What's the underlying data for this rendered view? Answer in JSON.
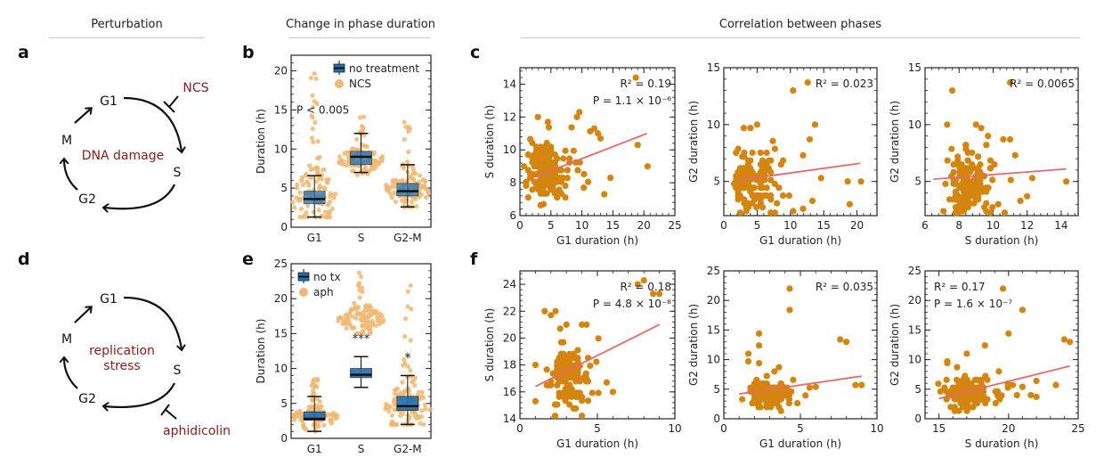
{
  "sections": {
    "perturbation": "Perturbation",
    "change": "Change in phase duration",
    "correlation": "Correlation between phases"
  },
  "panel_labels": {
    "a": "a",
    "b": "b",
    "c": "c",
    "d": "d",
    "e": "e",
    "f": "f"
  },
  "diagrams": [
    {
      "phases": [
        "G1",
        "S",
        "G2",
        "M"
      ],
      "center_label": [
        "DNA damage"
      ],
      "inhibitor": "NCS",
      "inhibitor_position": "G1-to-S"
    },
    {
      "phases": [
        "G1",
        "S",
        "G2",
        "M"
      ],
      "center_label": [
        "replication",
        "stress"
      ],
      "inhibitor": "aphidicolin",
      "inhibitor_position": "S-to-G2"
    }
  ],
  "colors": {
    "accent_text": "#8b1a1a",
    "box_blue": "#1f6fb4",
    "dot_light": "#f0b874",
    "dot_dark": "#d4850f",
    "fit_line": "#e8686a"
  },
  "chart_data": [
    {
      "id": "b",
      "type": "box+swarm",
      "title": "",
      "ylabel": "Duration (h)",
      "categories": [
        "G1",
        "S",
        "G2-M"
      ],
      "ylim": [
        0,
        22
      ],
      "yticks": [
        0,
        5,
        10,
        15,
        20
      ],
      "legend": [
        "no treatment",
        "NCS"
      ],
      "legend_position": "top-right",
      "annotation": "P < 0.005",
      "boxes_control": [
        {
          "whislo": 1.3,
          "q1": 3.0,
          "med": 3.6,
          "q3": 4.6,
          "whishi": 6.6
        },
        {
          "whislo": 7.0,
          "q1": 8.0,
          "med": 9.0,
          "q3": 9.7,
          "whishi": 12.0
        },
        {
          "whislo": 2.6,
          "q1": 4.0,
          "med": 4.6,
          "q3": 5.6,
          "whishi": 8.0
        }
      ],
      "treated_summary": [
        {
          "median": 3.7,
          "min": 1.3,
          "max": 20.7
        },
        {
          "median": 8.6,
          "min": 6.6,
          "max": 14.3
        },
        {
          "median": 4.8,
          "min": 2.6,
          "max": 13.6
        }
      ]
    },
    {
      "id": "e",
      "type": "box+swarm",
      "ylabel": "Duration (h)",
      "categories": [
        "G1",
        "S",
        "G2-M"
      ],
      "ylim": [
        0,
        25
      ],
      "yticks": [
        0,
        5,
        10,
        15,
        20,
        25
      ],
      "legend": [
        "no tx",
        "aph"
      ],
      "legend_position": "top-left",
      "significance": [
        "",
        "***",
        "*"
      ],
      "boxes_control": [
        {
          "whislo": 1.0,
          "q1": 2.6,
          "med": 2.8,
          "q3": 3.8,
          "whishi": 6.0
        },
        {
          "whislo": 7.3,
          "q1": 8.7,
          "med": 9.1,
          "q3": 10.0,
          "whishi": 11.7
        },
        {
          "whislo": 2.0,
          "q1": 4.0,
          "med": 4.6,
          "q3": 6.0,
          "whishi": 9.0
        }
      ],
      "treated_summary": [
        {
          "median": 3.0,
          "min": 1.0,
          "max": 9.0
        },
        {
          "median": 17.0,
          "min": 15.0,
          "max": 24.3
        },
        {
          "median": 4.3,
          "min": 2.0,
          "max": 22.0
        }
      ]
    },
    {
      "id": "c1",
      "type": "scatter",
      "xlabel": "G1 duration (h)",
      "ylabel": "S duration (h)",
      "xlim": [
        0,
        25
      ],
      "ylim": [
        6,
        15
      ],
      "xticks": [
        0,
        5,
        10,
        15,
        20,
        25
      ],
      "yticks": [
        6,
        8,
        10,
        12,
        14
      ],
      "annotations": [
        "R² = 0.19",
        "P = 1.1 × 10⁻⁶"
      ],
      "fit": {
        "x": [
          2,
          20.5
        ],
        "y": [
          8.3,
          11.0
        ]
      },
      "n_points": 150,
      "seed": 11,
      "x_center": 4.2,
      "x_spread": 2.5,
      "y_center": 8.6,
      "y_spread": 0.9,
      "outliers": [
        [
          18.7,
          14.4
        ],
        [
          19,
          10.3
        ],
        [
          20.6,
          9
        ],
        [
          9.6,
          12.3
        ],
        [
          9.2,
          12
        ],
        [
          2.9,
          12
        ],
        [
          4.5,
          11.7
        ],
        [
          12,
          11.3
        ],
        [
          12.6,
          11
        ],
        [
          13,
          10.7
        ],
        [
          14.6,
          8.3
        ],
        [
          13.6,
          7.3
        ],
        [
          10.3,
          7.7
        ],
        [
          3.8,
          6.7
        ]
      ]
    },
    {
      "id": "c2",
      "type": "scatter",
      "xlabel": "G1 duration (h)",
      "ylabel": "G2 duration (h)",
      "xlim": [
        0,
        23
      ],
      "ylim": [
        2,
        15
      ],
      "xticks": [
        0,
        5,
        10,
        15,
        20
      ],
      "yticks": [
        5,
        10,
        15
      ],
      "annotations": [
        "R² = 0.023"
      ],
      "fit": {
        "x": [
          2,
          20.5
        ],
        "y": [
          5.1,
          6.6
        ]
      },
      "n_points": 150,
      "seed": 23,
      "x_center": 4.0,
      "x_spread": 2.2,
      "y_center": 5.0,
      "y_spread": 1.4,
      "outliers": [
        [
          12.6,
          13.7
        ],
        [
          10.4,
          13
        ],
        [
          13.7,
          10
        ],
        [
          12.9,
          8.7
        ],
        [
          11.9,
          7.3
        ],
        [
          18.6,
          5
        ],
        [
          20.6,
          5
        ],
        [
          18.9,
          3
        ],
        [
          13.3,
          3.3
        ],
        [
          11.9,
          2.6
        ],
        [
          14.6,
          5.3
        ],
        [
          3,
          9.7
        ],
        [
          5,
          10
        ],
        [
          4,
          9.7
        ]
      ]
    },
    {
      "id": "c3",
      "type": "scatter",
      "xlabel": "S duration (h)",
      "ylabel": "G2 duration (h)",
      "xlim": [
        6,
        15
      ],
      "ylim": [
        2,
        15
      ],
      "xticks": [
        6,
        8,
        10,
        12,
        14
      ],
      "yticks": [
        5,
        10,
        15
      ],
      "annotations": [
        "R² = 0.0065"
      ],
      "fit": {
        "x": [
          6.5,
          14.3
        ],
        "y": [
          5.2,
          6.1
        ]
      },
      "n_points": 150,
      "seed": 37,
      "x_center": 8.5,
      "x_spread": 0.9,
      "y_center": 5.0,
      "y_spread": 1.4,
      "outliers": [
        [
          11,
          13.7
        ],
        [
          7.6,
          13
        ],
        [
          7.3,
          10
        ],
        [
          9,
          10
        ],
        [
          9.3,
          9.7
        ],
        [
          9.7,
          9
        ],
        [
          10.6,
          8.7
        ],
        [
          11,
          8.7
        ],
        [
          11.3,
          7.3
        ],
        [
          14.3,
          5
        ],
        [
          12.3,
          5.3
        ],
        [
          12,
          3.7
        ],
        [
          11.6,
          3.3
        ],
        [
          10.3,
          3
        ]
      ]
    },
    {
      "id": "f1",
      "type": "scatter",
      "xlabel": "G1 duration (h)",
      "ylabel": "S duration (h)",
      "xlim": [
        0,
        10
      ],
      "ylim": [
        14,
        25
      ],
      "xticks": [
        0,
        5,
        10
      ],
      "yticks": [
        14,
        16,
        18,
        20,
        22,
        24
      ],
      "annotations": [
        "R² = 0.18",
        "P = 4.8 × 10⁻⁸"
      ],
      "fit": {
        "x": [
          1,
          9
        ],
        "y": [
          16.4,
          21.0
        ]
      },
      "n_points": 150,
      "seed": 41,
      "x_center": 3.0,
      "x_spread": 0.9,
      "y_center": 17.2,
      "y_spread": 1.2,
      "outliers": [
        [
          7.6,
          24
        ],
        [
          8,
          24.3
        ],
        [
          8.6,
          23.3
        ],
        [
          9,
          23.3
        ],
        [
          1.6,
          22
        ],
        [
          2,
          21.7
        ],
        [
          2.3,
          22
        ],
        [
          2.6,
          20.7
        ],
        [
          3,
          21
        ],
        [
          4,
          21
        ],
        [
          4.3,
          21
        ],
        [
          6,
          16
        ],
        [
          5.6,
          16.7
        ],
        [
          1,
          15.3
        ],
        [
          1,
          18
        ]
      ]
    },
    {
      "id": "f2",
      "type": "scatter",
      "xlabel": "G1 duration (h)",
      "ylabel": "G2 duration (h)",
      "xlim": [
        0,
        10
      ],
      "ylim": [
        0,
        25
      ],
      "xticks": [
        0,
        5,
        10
      ],
      "yticks": [
        0,
        5,
        10,
        15,
        20,
        25
      ],
      "annotations": [
        "R² = 0.035"
      ],
      "fit": {
        "x": [
          1,
          9
        ],
        "y": [
          4.2,
          7.2
        ]
      },
      "n_points": 150,
      "seed": 53,
      "x_center": 2.8,
      "x_spread": 0.9,
      "y_center": 4.3,
      "y_spread": 1.1,
      "outliers": [
        [
          4.3,
          22
        ],
        [
          4.3,
          18.4
        ],
        [
          7.6,
          13.4
        ],
        [
          8,
          13
        ],
        [
          2.3,
          14.4
        ],
        [
          2.3,
          12.4
        ],
        [
          1.6,
          11
        ],
        [
          1.6,
          9.7
        ],
        [
          2.3,
          9.4
        ],
        [
          3.6,
          8.7
        ],
        [
          3.3,
          8
        ],
        [
          8.6,
          5.7
        ],
        [
          9,
          5.7
        ],
        [
          6,
          5.4
        ]
      ]
    },
    {
      "id": "f3",
      "type": "scatter",
      "xlabel": "S duration (h)",
      "ylabel": "G2 duration (h)",
      "xlim": [
        14,
        25
      ],
      "ylim": [
        0,
        25
      ],
      "xticks": [
        15,
        20,
        25
      ],
      "yticks": [
        0,
        5,
        10,
        15,
        20,
        25
      ],
      "annotations": [
        "R² = 0.17",
        "P = 1.6 × 10⁻⁷"
      ],
      "fit": {
        "x": [
          15,
          24.4
        ],
        "y": [
          3.4,
          8.9
        ]
      },
      "n_points": 150,
      "seed": 67,
      "x_center": 17.0,
      "x_spread": 1.1,
      "y_center": 4.3,
      "y_spread": 1.2,
      "outliers": [
        [
          19.6,
          22
        ],
        [
          21,
          18.4
        ],
        [
          20,
          14.4
        ],
        [
          24,
          13.4
        ],
        [
          24.4,
          13
        ],
        [
          18.3,
          12.4
        ],
        [
          17,
          11
        ],
        [
          15.6,
          9.7
        ],
        [
          15.6,
          9.4
        ],
        [
          16.3,
          8.7
        ],
        [
          22,
          6.4
        ],
        [
          23.4,
          5.7
        ],
        [
          21,
          5.4
        ],
        [
          20.3,
          5.7
        ],
        [
          21.6,
          4
        ],
        [
          22,
          3.7
        ],
        [
          20.6,
          4
        ],
        [
          19.3,
          8
        ]
      ]
    }
  ]
}
